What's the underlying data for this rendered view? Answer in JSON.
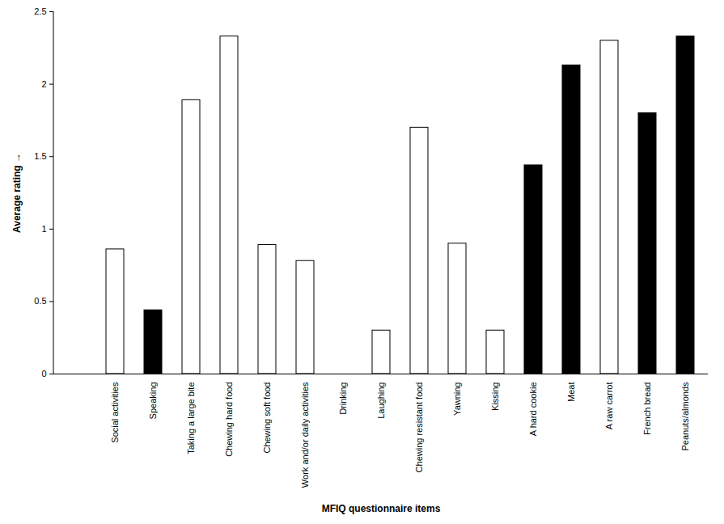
{
  "chart_data": {
    "type": "bar",
    "x_label": "MFIQ questionnaire items",
    "y_label": "Average rating",
    "categories": [
      "Social activities",
      "Speaking",
      "Taking a large bite",
      "Chewing hard food",
      "Chewing soft food",
      "Work and/or daily activities",
      "Drinking",
      "Laughing",
      "Chewing resistant food",
      "Yawning",
      "Kissing",
      "A hard cookie",
      "Meat",
      "A raw carrot",
      "French bread",
      "Peanuts/almonds"
    ],
    "values": [
      0.86,
      0.44,
      1.89,
      2.33,
      0.89,
      0.78,
      0,
      0.3,
      1.7,
      0.9,
      0.3,
      1.44,
      2.13,
      2.3,
      1.8,
      2.33
    ],
    "colors": [
      "#ffffff",
      "#000000",
      "#ffffff",
      "#ffffff",
      "#ffffff",
      "#ffffff",
      "#ffffff",
      "#ffffff",
      "#ffffff",
      "#ffffff",
      "#ffffff",
      "#000000",
      "#000000",
      "#ffffff",
      "#000000",
      "#000000"
    ],
    "ylim": [
      0,
      2.5
    ],
    "yticks": [
      0,
      0.5,
      1,
      1.5,
      2,
      2.5
    ],
    "grid": false
  }
}
